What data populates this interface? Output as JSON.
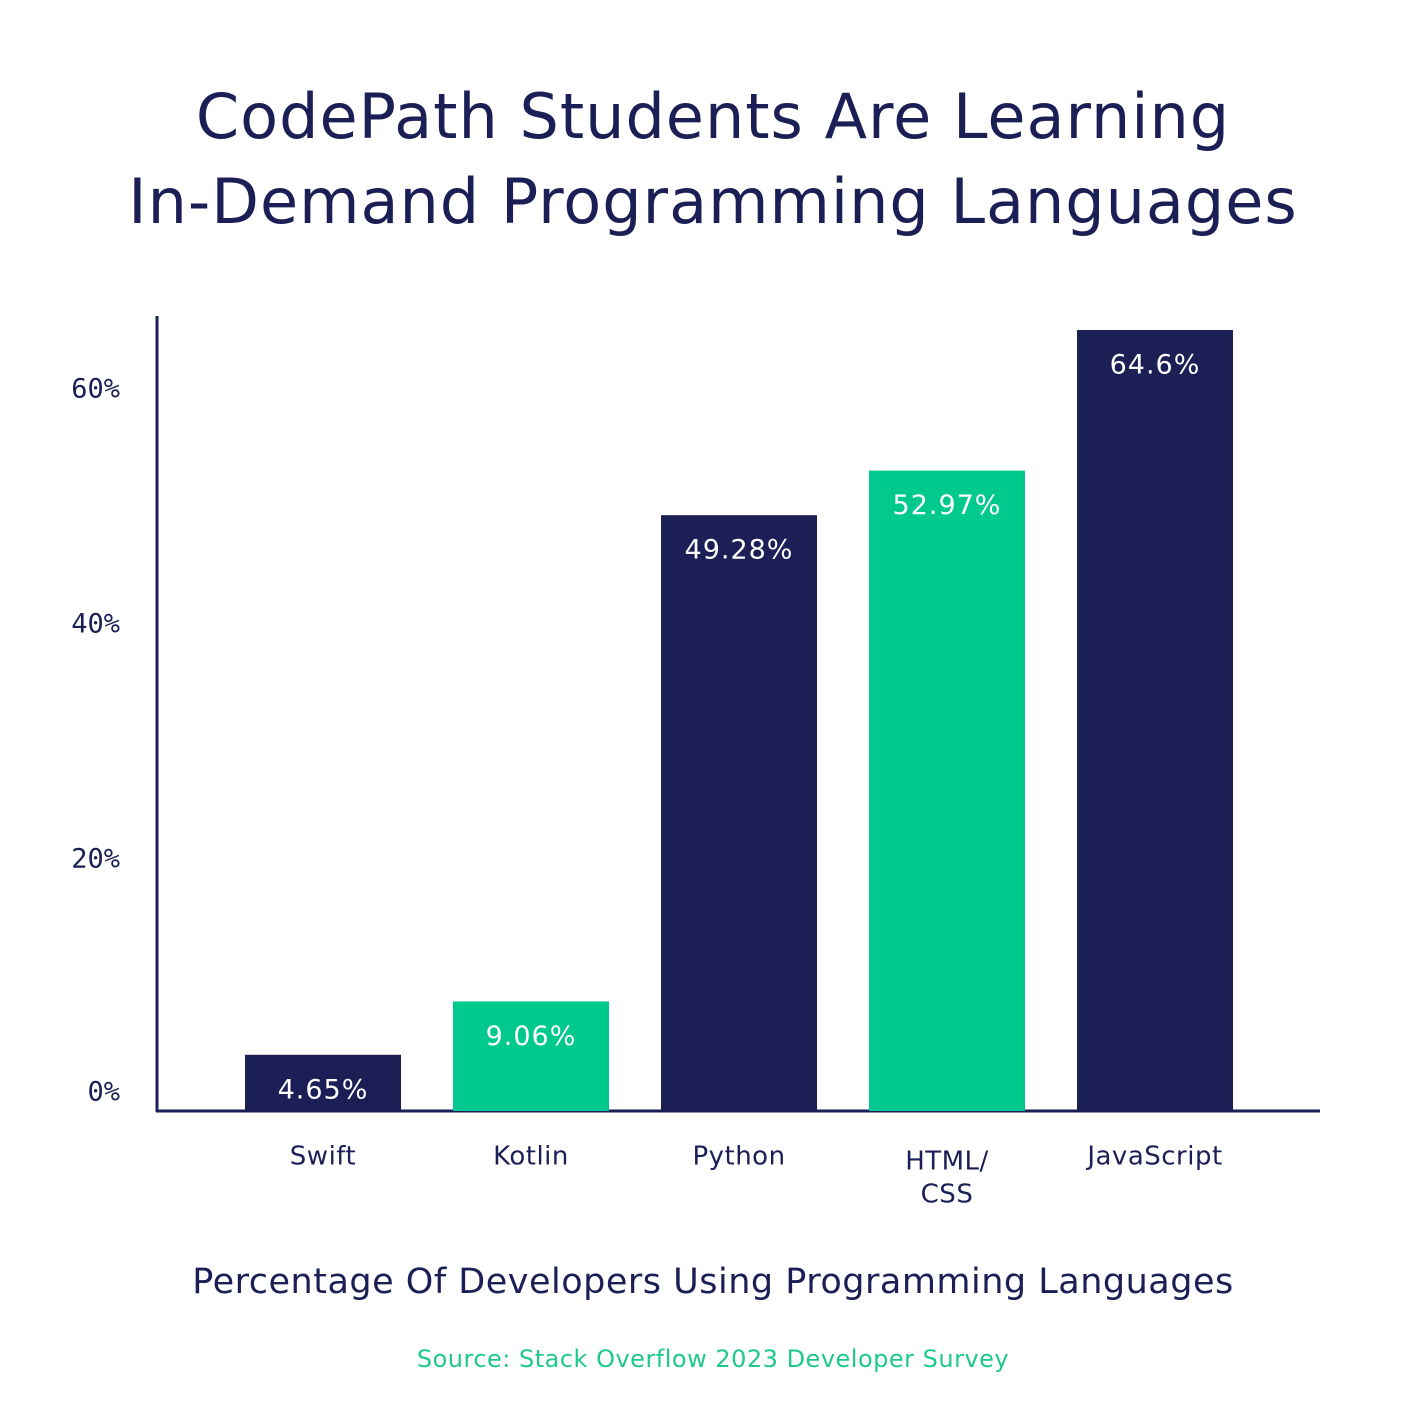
{
  "chart_data": {
    "type": "bar",
    "title_lines": [
      "CodePath Students Are Learning",
      "In-Demand Programming Languages"
    ],
    "xlabel": "Percentage Of Developers Using Programming Languages",
    "ylabel": "",
    "source": "Source: Stack Overflow 2023 Developer Survey",
    "categories": [
      {
        "lines": [
          "Swift"
        ]
      },
      {
        "lines": [
          "Kotlin"
        ]
      },
      {
        "lines": [
          "Python"
        ]
      },
      {
        "lines": [
          "HTML/",
          "CSS"
        ]
      },
      {
        "lines": [
          "JavaScript"
        ]
      }
    ],
    "values": [
      4.65,
      9.06,
      49.28,
      52.97,
      64.6
    ],
    "value_labels": [
      "4.65%",
      "9.06%",
      "49.28%",
      "52.97%",
      "64.6%"
    ],
    "bar_colors": [
      "#1c1f56",
      "#00c98d",
      "#1c1f56",
      "#00c98d",
      "#1c1f56"
    ],
    "yticks": [
      {
        "value": 0,
        "label": "0%"
      },
      {
        "value": 20,
        "label": "20%"
      },
      {
        "value": 40,
        "label": "40%"
      },
      {
        "value": 60,
        "label": "60%"
      }
    ],
    "ylim": [
      0,
      67
    ],
    "grid": false,
    "legend": "none"
  },
  "colors": {
    "navy": "#1c1f56",
    "green": "#00c98d",
    "source_green": "#1fc98b",
    "label_on_bar": "#ffffff"
  }
}
